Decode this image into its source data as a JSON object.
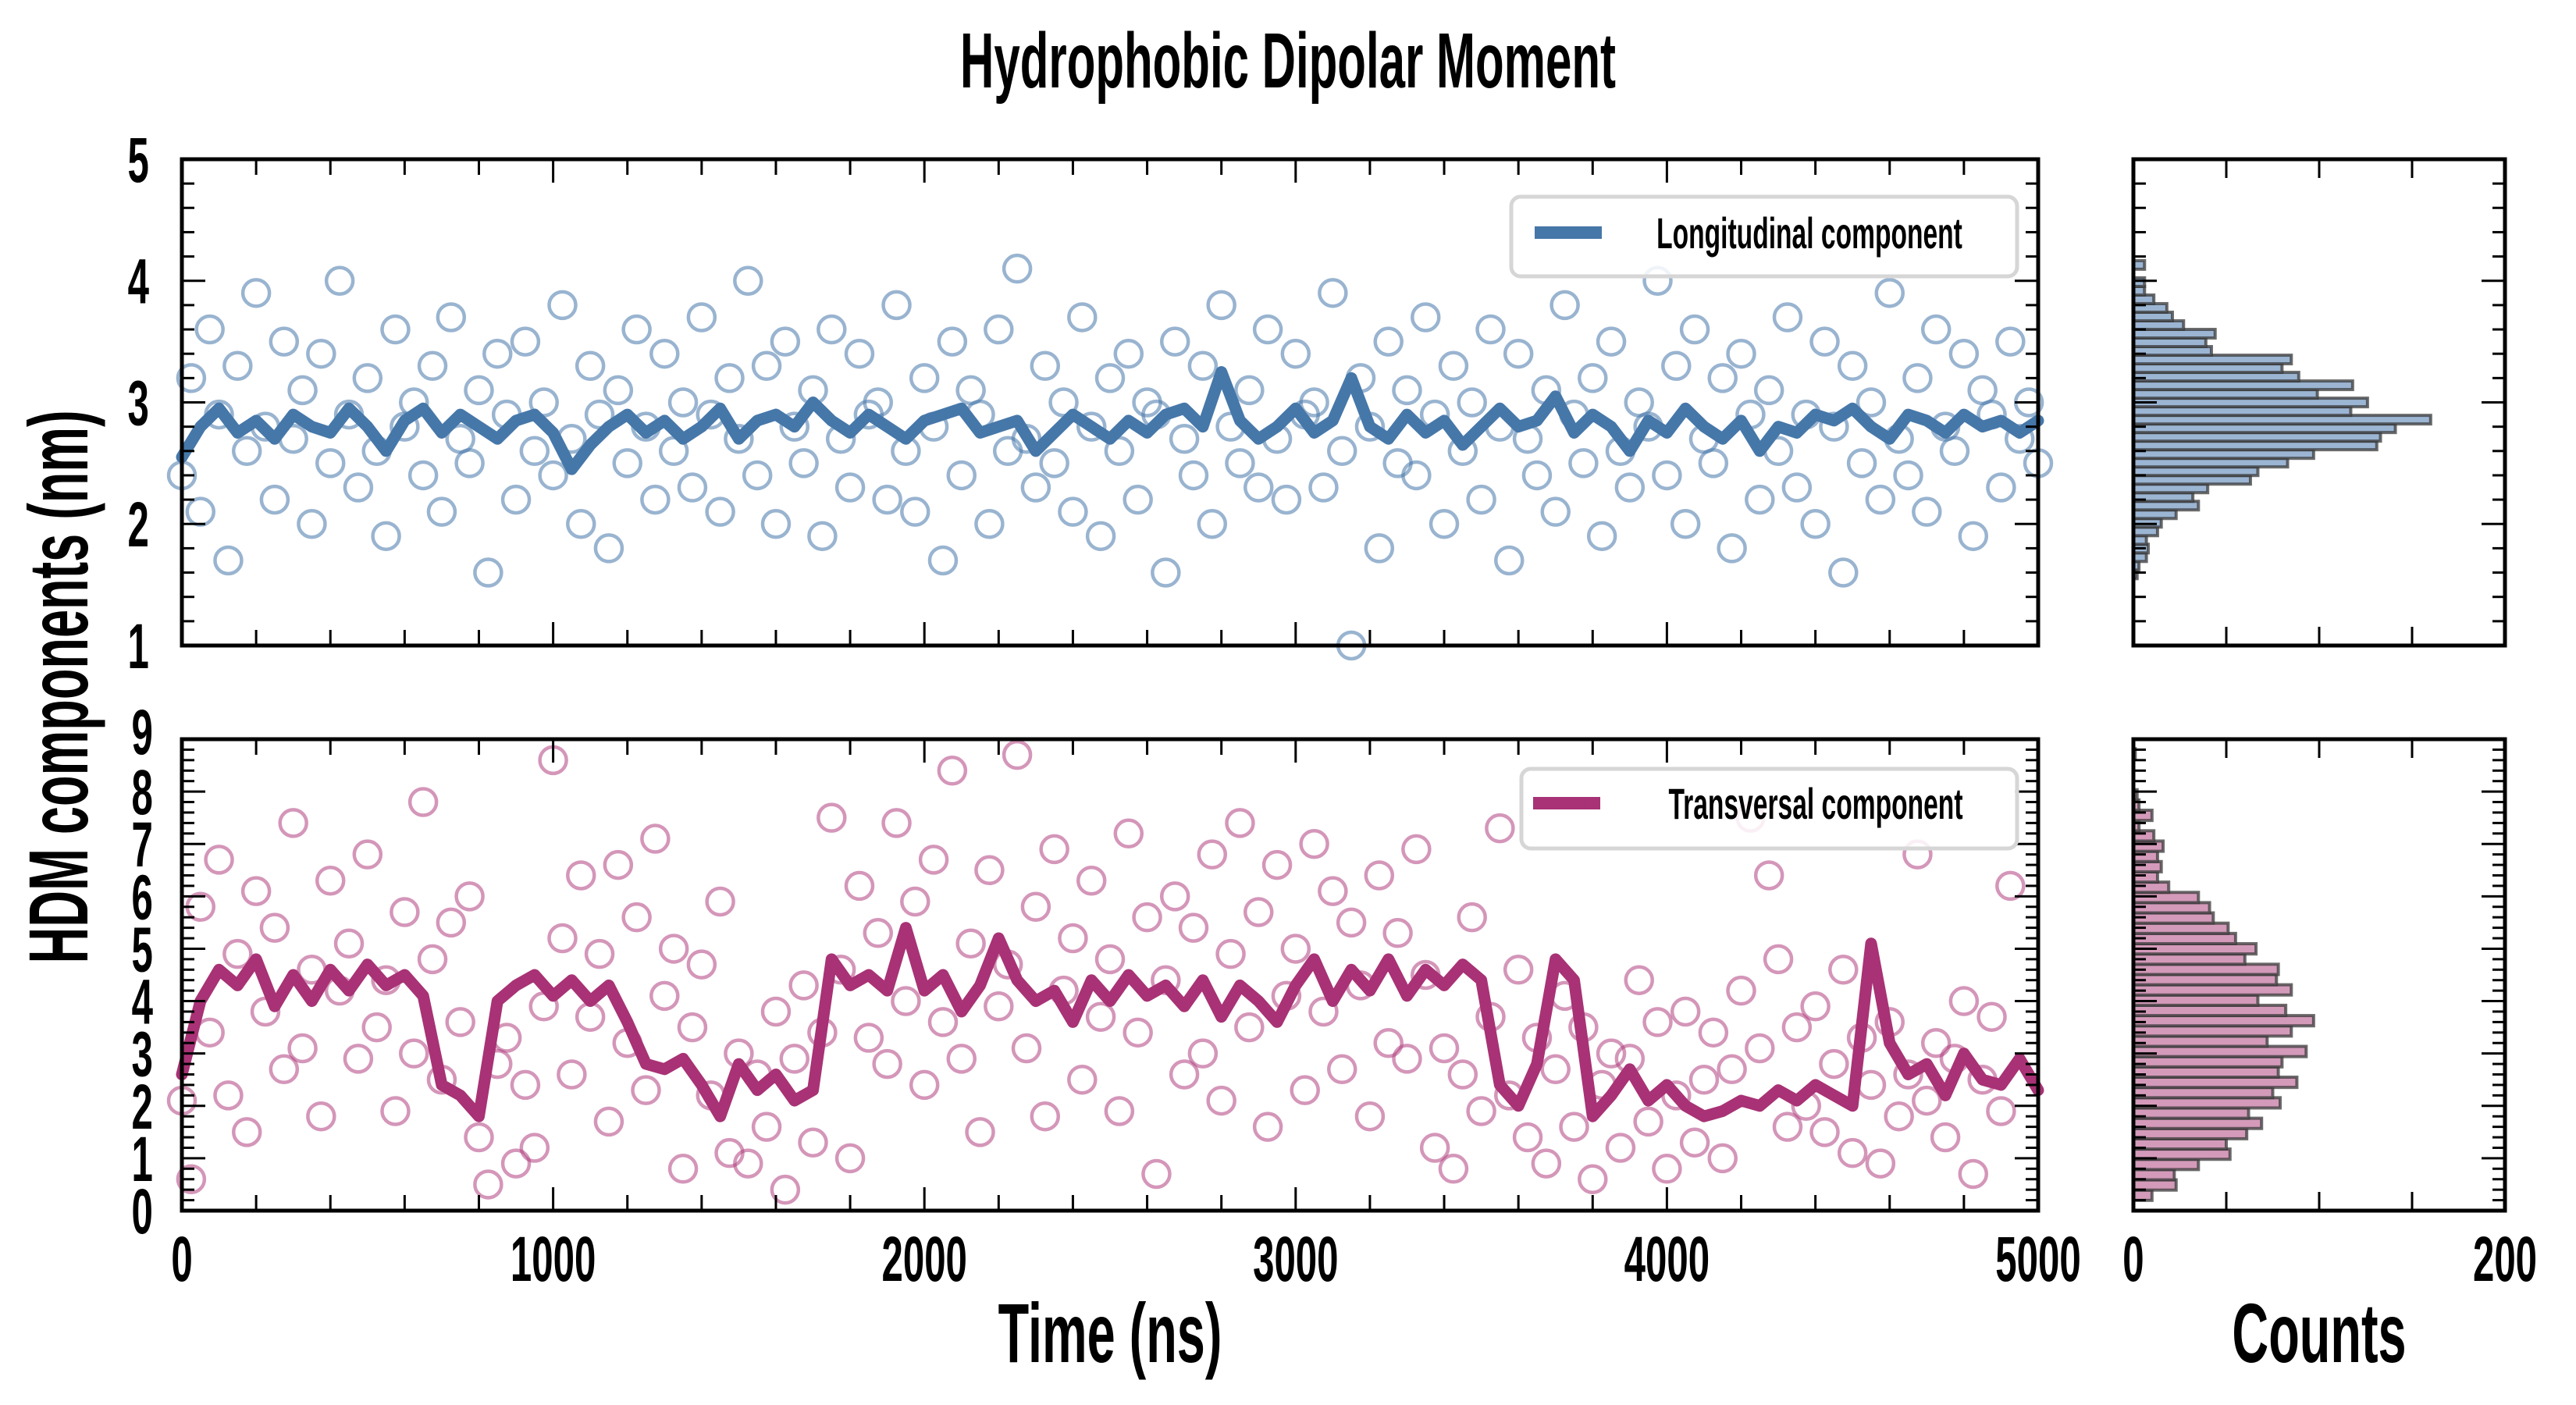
{
  "figure": {
    "title": "Hydrophobic Dipolar Moment",
    "ylabel": "HDM components (nm)",
    "xlabel": "Time (ns)",
    "hist_xlabel": "Counts"
  },
  "colors": {
    "longitudinal": "#4677a9",
    "longitudinal_marker": "#4677a9",
    "transversal": "#a83275",
    "transversal_marker": "#b0407f",
    "hist_long_fill": "#9bb5d3",
    "hist_trans_fill": "#d49aba",
    "hist_edge": "#3a3a3a"
  },
  "chart_data": [
    {
      "id": "longitudinal-timeseries",
      "type": "line+scatter",
      "legend": "Longitudinal component",
      "legend_position": "top-right",
      "xlim": [
        0,
        5000
      ],
      "ylim": [
        1,
        5
      ],
      "x_ticks": [
        "0",
        "1000",
        "2000",
        "3000",
        "4000",
        "5000"
      ],
      "y_ticks": [
        "1",
        "2",
        "3",
        "4",
        "5"
      ],
      "x_start": 0,
      "line_x_step": 50,
      "line_values": [
        2.55,
        2.8,
        2.95,
        2.75,
        2.85,
        2.7,
        2.9,
        2.8,
        2.75,
        2.95,
        2.8,
        2.6,
        2.85,
        2.95,
        2.75,
        2.9,
        2.8,
        2.7,
        2.85,
        2.9,
        2.75,
        2.45,
        2.65,
        2.8,
        2.9,
        2.75,
        2.85,
        2.7,
        2.8,
        2.95,
        2.7,
        2.85,
        2.9,
        2.8,
        3.0,
        2.85,
        2.75,
        2.9,
        2.8,
        2.7,
        2.85,
        2.9,
        2.95,
        2.75,
        2.8,
        2.85,
        2.6,
        2.75,
        2.9,
        2.8,
        2.7,
        2.85,
        2.75,
        2.9,
        2.95,
        2.8,
        3.25,
        2.85,
        2.7,
        2.8,
        2.95,
        2.75,
        2.85,
        3.2,
        2.8,
        2.7,
        2.9,
        2.75,
        2.85,
        2.65,
        2.8,
        2.95,
        2.8,
        2.85,
        3.05,
        2.75,
        2.9,
        2.8,
        2.6,
        2.85,
        2.75,
        2.95,
        2.8,
        2.7,
        2.85,
        2.6,
        2.8,
        2.75,
        2.9,
        2.85,
        2.95,
        2.8,
        2.7,
        2.9,
        2.85,
        2.75,
        2.9,
        2.8,
        2.85,
        2.75,
        2.85
      ],
      "scatter_x_step": 25,
      "scatter_values": [
        2.4,
        3.2,
        2.1,
        3.6,
        2.9,
        1.7,
        3.3,
        2.6,
        3.9,
        2.8,
        2.2,
        3.5,
        2.7,
        3.1,
        2.0,
        3.4,
        2.5,
        4.0,
        2.9,
        2.3,
        3.2,
        2.6,
        1.9,
        3.6,
        2.8,
        3.0,
        2.4,
        3.3,
        2.1,
        3.7,
        2.7,
        2.5,
        3.1,
        1.6,
        3.4,
        2.9,
        2.2,
        3.5,
        2.6,
        3.0,
        2.4,
        3.8,
        2.7,
        2.0,
        3.3,
        2.9,
        1.8,
        3.1,
        2.5,
        3.6,
        2.8,
        2.2,
        3.4,
        2.6,
        3.0,
        2.3,
        3.7,
        2.9,
        2.1,
        3.2,
        2.7,
        4.0,
        2.4,
        3.3,
        2.0,
        3.5,
        2.8,
        2.5,
        3.1,
        1.9,
        3.6,
        2.7,
        2.3,
        3.4,
        2.9,
        3.0,
        2.2,
        3.8,
        2.6,
        2.1,
        3.2,
        2.8,
        1.7,
        3.5,
        2.4,
        3.1,
        2.9,
        2.0,
        3.6,
        2.6,
        4.1,
        2.7,
        2.3,
        3.3,
        2.5,
        3.0,
        2.1,
        3.7,
        2.8,
        1.9,
        3.2,
        2.6,
        3.4,
        2.2,
        3.0,
        2.9,
        1.6,
        3.5,
        2.7,
        2.4,
        3.3,
        2.0,
        3.8,
        2.8,
        2.5,
        3.1,
        2.3,
        3.6,
        2.7,
        2.2,
        3.4,
        2.9,
        3.0,
        2.3,
        3.9,
        2.6,
        1.0,
        3.2,
        2.8,
        1.8,
        3.5,
        2.5,
        3.1,
        2.4,
        3.7,
        2.9,
        2.0,
        3.3,
        2.6,
        3.0,
        2.2,
        3.6,
        2.8,
        1.7,
        3.4,
        2.7,
        2.4,
        3.1,
        2.1,
        3.8,
        2.9,
        2.5,
        3.2,
        1.9,
        3.5,
        2.6,
        2.3,
        3.0,
        2.8,
        4.0,
        2.4,
        3.3,
        2.0,
        3.6,
        2.7,
        2.5,
        3.2,
        1.8,
        3.4,
        2.9,
        2.2,
        3.1,
        2.6,
        3.7,
        2.3,
        2.9,
        2.0,
        3.5,
        2.8,
        1.6,
        3.3,
        2.5,
        3.0,
        2.2,
        3.9,
        2.7,
        2.4,
        3.2,
        2.1,
        3.6,
        2.8,
        2.6,
        3.4,
        1.9,
        3.1,
        2.9,
        2.3,
        3.5,
        2.7,
        3.0,
        2.5
      ]
    },
    {
      "id": "longitudinal-histogram",
      "type": "histogram-horizontal",
      "xlim": [
        0,
        200
      ],
      "x_ticks": [
        "0",
        "200"
      ],
      "ylim": [
        1,
        5
      ],
      "bin_start": 1.55,
      "bin_width": 0.0707,
      "counts": [
        2,
        3,
        7,
        8,
        7,
        13,
        15,
        23,
        35,
        32,
        40,
        63,
        67,
        83,
        97,
        131,
        133,
        141,
        160,
        117,
        126,
        99,
        118,
        89,
        80,
        85,
        42,
        39,
        44,
        27,
        21,
        18,
        11,
        6,
        6,
        0,
        6
      ]
    },
    {
      "id": "transversal-timeseries",
      "type": "line+scatter",
      "legend": "Transversal component",
      "legend_position": "top-right",
      "xlim": [
        0,
        5000
      ],
      "ylim": [
        0,
        9
      ],
      "x_ticks": [
        "0",
        "1000",
        "2000",
        "3000",
        "4000",
        "5000"
      ],
      "y_ticks": [
        "0",
        "1",
        "2",
        "3",
        "4",
        "5",
        "6",
        "7",
        "8",
        "9"
      ],
      "x_start": 0,
      "line_x_step": 50,
      "line_values": [
        2.6,
        4.0,
        4.6,
        4.3,
        4.8,
        3.9,
        4.5,
        4.0,
        4.6,
        4.2,
        4.7,
        4.3,
        4.5,
        4.1,
        2.4,
        2.2,
        1.8,
        4.0,
        4.3,
        4.5,
        4.1,
        4.4,
        4.0,
        4.3,
        3.6,
        2.8,
        2.7,
        2.9,
        2.4,
        1.8,
        2.8,
        2.3,
        2.6,
        2.1,
        2.3,
        4.8,
        4.3,
        4.5,
        4.2,
        5.4,
        4.2,
        4.5,
        3.8,
        4.3,
        5.2,
        4.4,
        4.0,
        4.2,
        3.6,
        4.4,
        4.0,
        4.5,
        4.1,
        4.3,
        3.9,
        4.4,
        3.7,
        4.3,
        4.0,
        3.6,
        4.3,
        4.8,
        4.0,
        4.6,
        4.2,
        4.8,
        4.1,
        4.6,
        4.3,
        4.7,
        4.4,
        2.4,
        2.0,
        2.8,
        4.8,
        4.4,
        1.8,
        2.2,
        2.7,
        2.1,
        2.4,
        2.0,
        1.8,
        1.9,
        2.1,
        2.0,
        2.3,
        2.1,
        2.4,
        2.2,
        2.0,
        5.1,
        3.2,
        2.6,
        2.8,
        2.2,
        3.0,
        2.5,
        2.4,
        2.9,
        2.3
      ],
      "scatter_x_step": 25,
      "scatter_values": [
        2.1,
        0.6,
        5.8,
        3.4,
        6.7,
        2.2,
        4.9,
        1.5,
        6.1,
        3.8,
        5.4,
        2.7,
        7.4,
        3.1,
        4.6,
        1.8,
        6.3,
        4.2,
        5.1,
        2.9,
        6.8,
        3.5,
        4.4,
        1.9,
        5.7,
        3.0,
        7.8,
        4.8,
        2.5,
        5.5,
        3.6,
        6.0,
        1.4,
        0.5,
        2.8,
        3.3,
        0.9,
        2.4,
        1.2,
        3.9,
        8.6,
        5.2,
        2.6,
        6.4,
        3.7,
        4.9,
        1.7,
        6.6,
        3.2,
        5.6,
        2.3,
        7.1,
        4.1,
        5.0,
        0.8,
        3.5,
        4.7,
        2.2,
        5.9,
        1.1,
        3.0,
        0.9,
        2.6,
        1.6,
        3.8,
        0.4,
        2.9,
        4.3,
        1.3,
        3.4,
        7.5,
        4.6,
        1.0,
        6.2,
        3.3,
        5.3,
        2.8,
        7.4,
        4.0,
        5.9,
        2.4,
        6.7,
        3.6,
        8.4,
        2.9,
        5.1,
        1.5,
        6.5,
        3.9,
        4.7,
        8.7,
        3.1,
        5.8,
        1.8,
        6.9,
        4.2,
        5.2,
        2.5,
        6.3,
        3.7,
        4.8,
        1.9,
        7.2,
        3.4,
        5.6,
        0.7,
        4.4,
        6.0,
        2.6,
        5.4,
        3.0,
        6.8,
        2.1,
        4.9,
        7.4,
        3.5,
        5.7,
        1.6,
        6.6,
        4.1,
        5.0,
        2.3,
        7.0,
        3.8,
        6.1,
        2.7,
        5.5,
        4.3,
        1.8,
        6.4,
        3.2,
        5.3,
        2.9,
        6.9,
        4.5,
        1.2,
        3.1,
        0.8,
        2.6,
        5.6,
        1.9,
        3.7,
        7.3,
        2.2,
        4.6,
        1.4,
        3.3,
        0.9,
        2.7,
        4.1,
        1.6,
        3.5,
        0.6,
        2.4,
        3.0,
        1.2,
        2.9,
        4.4,
        1.7,
        3.6,
        0.8,
        2.2,
        3.8,
        1.3,
        2.5,
        3.4,
        1.0,
        2.7,
        4.2,
        7.5,
        3.1,
        6.4,
        4.8,
        1.6,
        3.5,
        2.0,
        3.9,
        1.5,
        2.8,
        4.6,
        1.1,
        3.3,
        2.4,
        0.9,
        3.6,
        1.8,
        2.6,
        6.8,
        2.1,
        3.2,
        1.4,
        2.9,
        4.0,
        0.7,
        2.5,
        3.7,
        1.9,
        6.2
      ]
    },
    {
      "id": "transversal-histogram",
      "type": "histogram-horizontal",
      "xlim": [
        0,
        200
      ],
      "x_ticks": [
        "0",
        "200"
      ],
      "ylim": [
        0,
        9
      ],
      "bin_start": 0,
      "bin_width": 0.196,
      "counts": [
        0,
        10,
        23,
        22,
        35,
        52,
        50,
        61,
        69,
        62,
        79,
        75,
        88,
        78,
        80,
        93,
        72,
        85,
        97,
        82,
        67,
        85,
        77,
        78,
        60,
        66,
        55,
        51,
        43,
        41,
        35,
        19,
        13,
        15,
        13,
        16,
        11,
        3,
        10,
        3,
        2,
        0,
        0,
        0,
        1,
        0
      ]
    }
  ]
}
